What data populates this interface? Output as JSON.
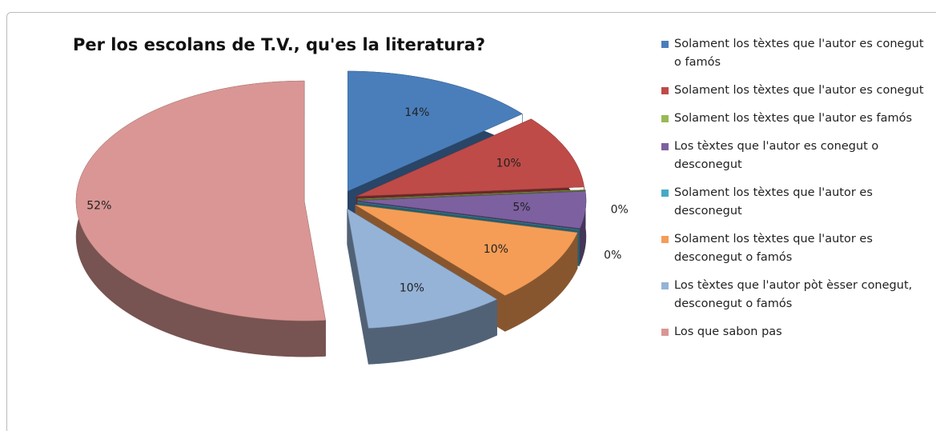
{
  "chart_data": {
    "type": "pie3d",
    "title": "Per los escolans de T.V., qu'es la literatura?",
    "categories": [
      "Solament los tèxtes que l'autor es conegut o famós",
      "Solament los tèxtes que l'autor es conegut",
      "Solament los tèxtes que l'autor es famós",
      "Los tèxtes que l'autor es conegut o desconegut",
      "Solament los tèxtes que l'autor es desconegut",
      "Solament los tèxtes que l'autor es desconegut o famós",
      "Los tèxtes que l'autor pòt èsser conegut, desconegut o famós",
      "Los que sabon pas"
    ],
    "values": [
      14,
      10,
      0,
      5,
      0,
      10,
      10,
      52
    ],
    "value_labels": [
      "14%",
      "10%",
      "0%",
      "5%",
      "0%",
      "10%",
      "10%",
      "52%"
    ],
    "colors": [
      "#4a7ebb",
      "#be4b48",
      "#98b954",
      "#7d60a0",
      "#46aac5",
      "#f59d56",
      "#95b3d7",
      "#d99694"
    ],
    "legend": "right"
  }
}
